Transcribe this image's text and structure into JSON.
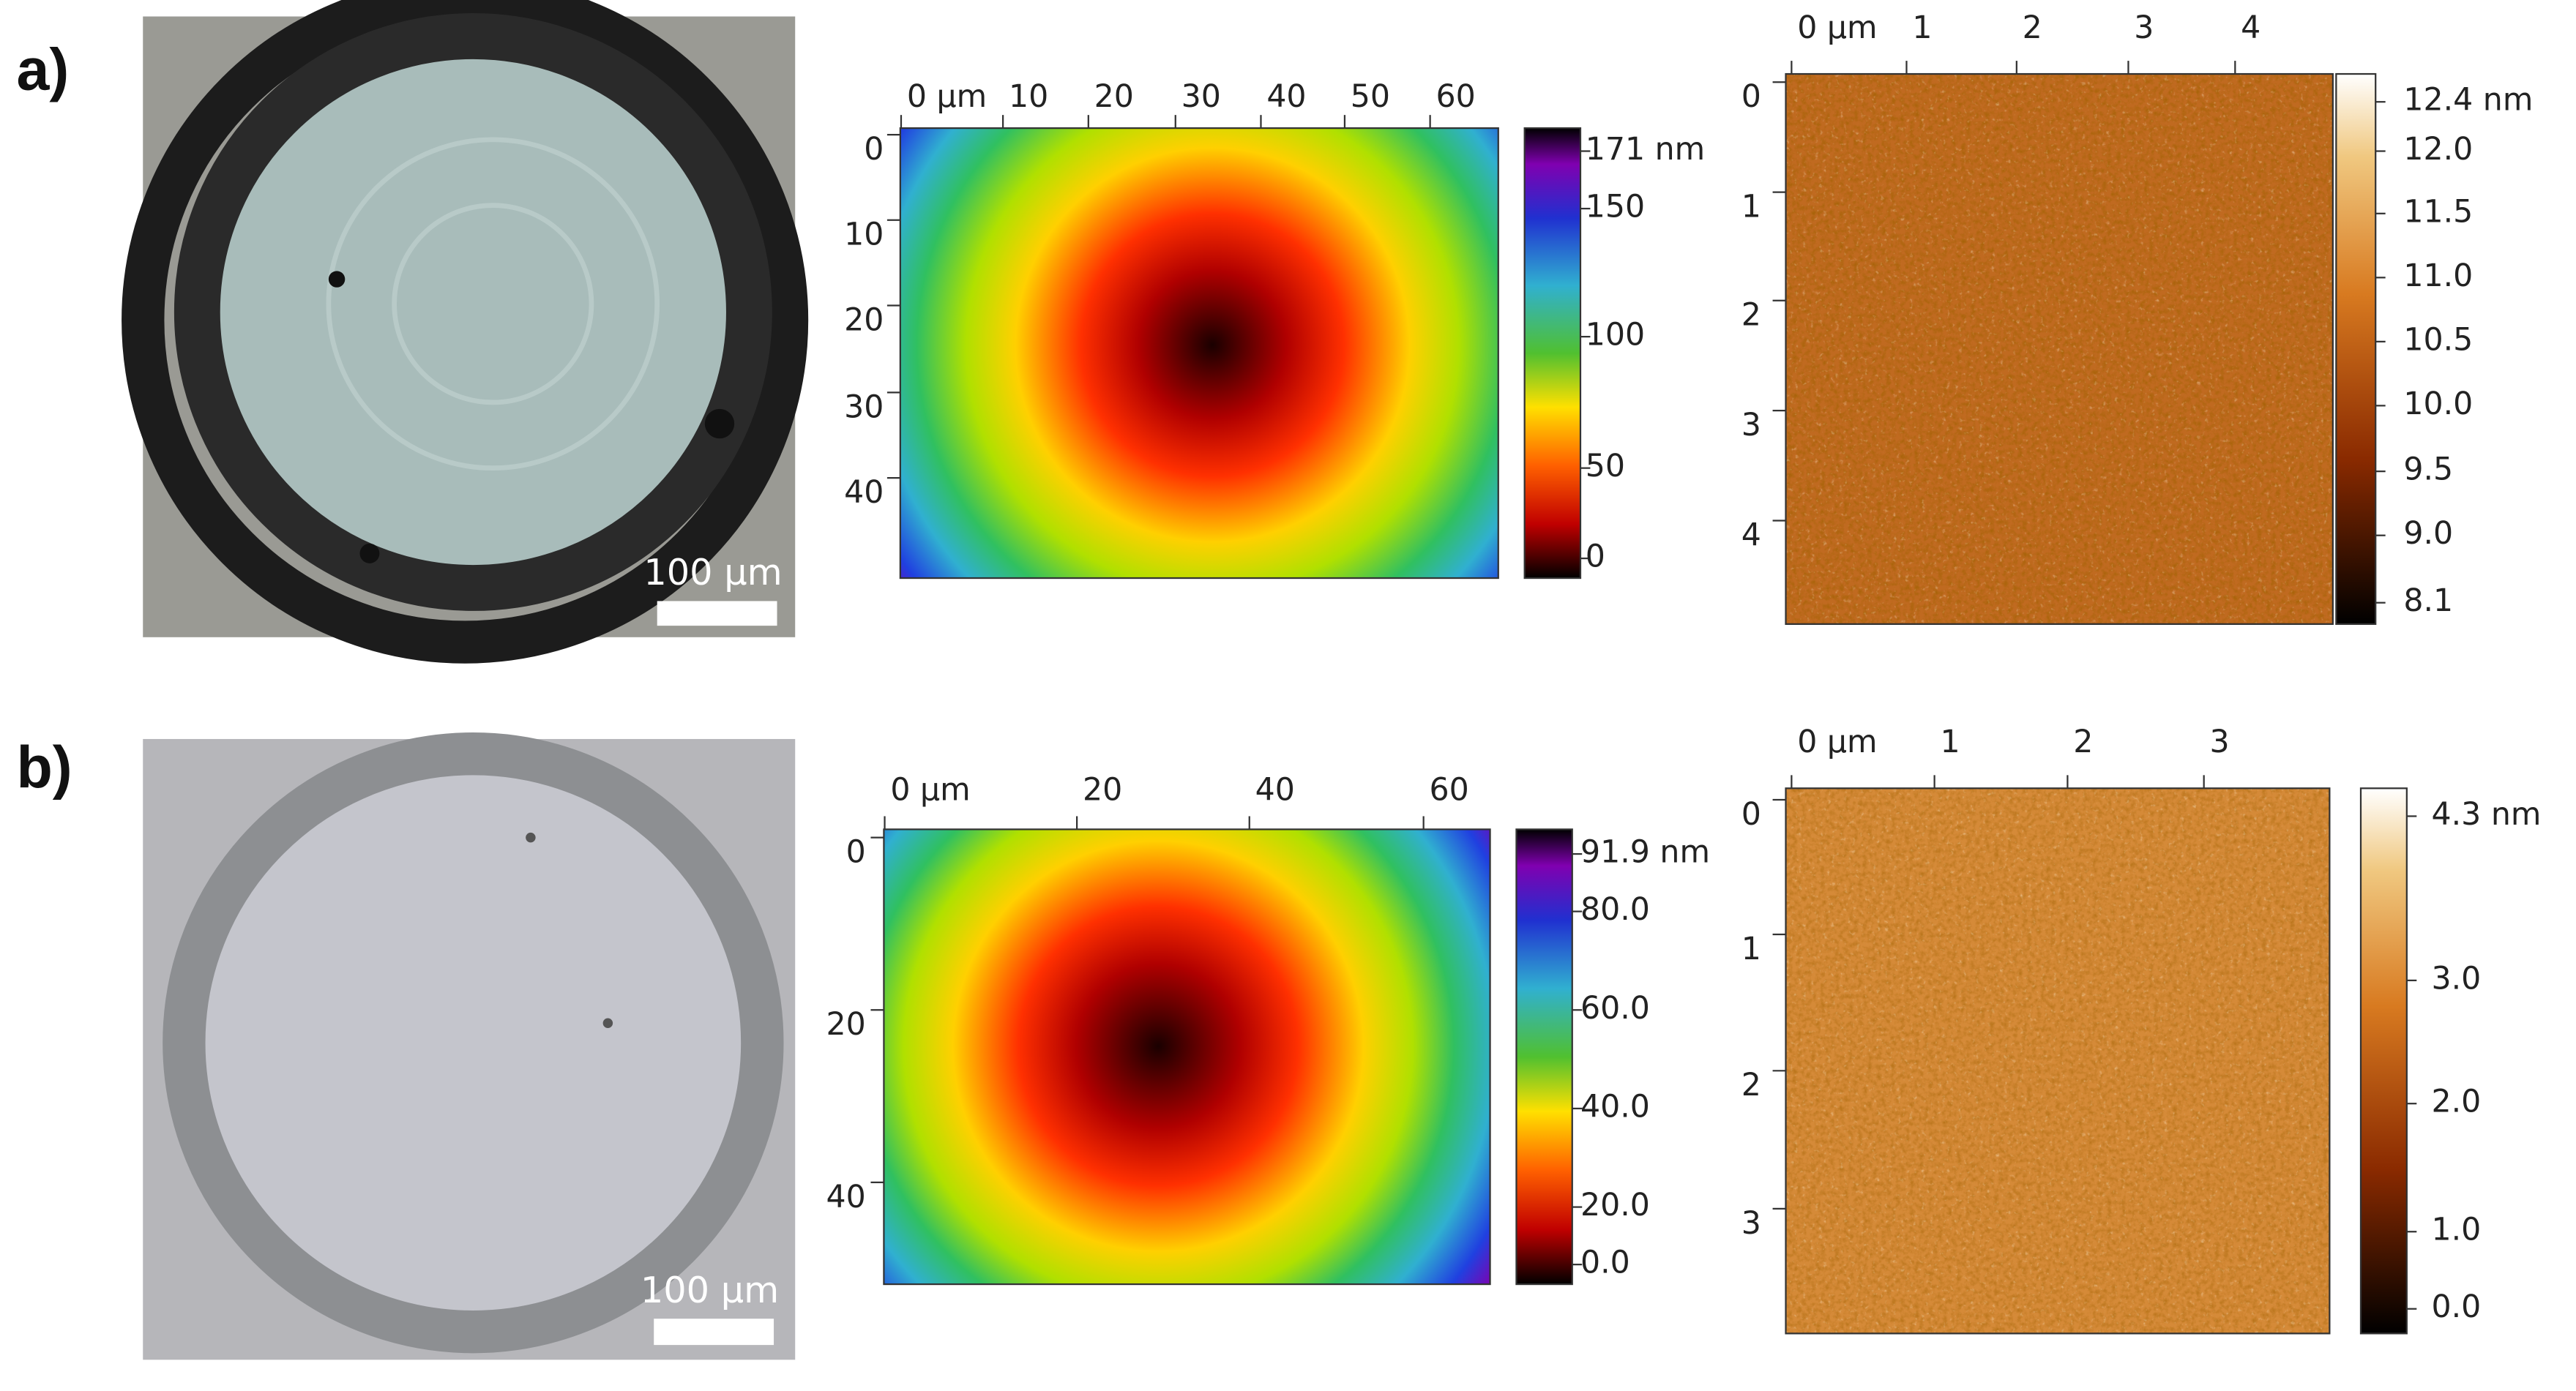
{
  "rows": [
    {
      "label": "a)",
      "micrograph": {
        "scale_bar": "100 µm"
      },
      "height_map": {
        "x_ticks": [
          "0 µm",
          "10",
          "20",
          "30",
          "40",
          "50",
          "60"
        ],
        "y_ticks": [
          "0",
          "10",
          "20",
          "30",
          "40"
        ],
        "colorbar_ticks": [
          "171 nm",
          "150",
          "100",
          "50",
          "0"
        ]
      },
      "roughness_map": {
        "x_ticks": [
          "0 µm",
          "1",
          "2",
          "3",
          "4"
        ],
        "y_ticks": [
          "0",
          "1",
          "2",
          "3",
          "4"
        ],
        "colorbar_ticks": [
          "12.4 nm",
          "12.0",
          "11.5",
          "11.0",
          "10.5",
          "10.0",
          "9.5",
          "9.0",
          "8.1"
        ]
      }
    },
    {
      "label": "b)",
      "micrograph": {
        "scale_bar": "100 µm"
      },
      "height_map": {
        "x_ticks": [
          "0 µm",
          "20",
          "40",
          "60"
        ],
        "y_ticks": [
          "0",
          "20",
          "40"
        ],
        "colorbar_ticks": [
          "91.9 nm",
          "80.0",
          "60.0",
          "40.0",
          "20.0",
          "0.0"
        ]
      },
      "roughness_map": {
        "x_ticks": [
          "0 µm",
          "1",
          "2",
          "3"
        ],
        "y_ticks": [
          "0",
          "1",
          "2",
          "3"
        ],
        "colorbar_ticks": [
          "4.3 nm",
          "3.0",
          "2.0",
          "1.0",
          "0.0"
        ]
      }
    }
  ]
}
